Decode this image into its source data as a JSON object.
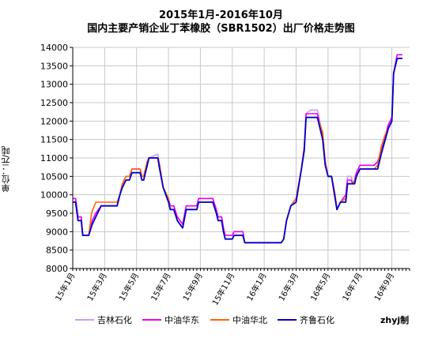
{
  "title_line1": "2015年1月-2016年10月",
  "title_line2": "国内主要产销企业丁苯橡胶（SBR1502）出厂价格走势图",
  "watermark": "zhyj制",
  "chart_data": {
    "type": "line",
    "ylabel": "单位：元/吨",
    "ylim": [
      8000,
      14000
    ],
    "ytick_step": 500,
    "xlim": [
      0,
      95
    ],
    "x_tick_labels": [
      {
        "x": 0,
        "label": "15年1月"
      },
      {
        "x": 9,
        "label": "15年3月"
      },
      {
        "x": 18,
        "label": "15年5月"
      },
      {
        "x": 27,
        "label": "15年7月"
      },
      {
        "x": 36,
        "label": "15年9月"
      },
      {
        "x": 45,
        "label": "15年11月"
      },
      {
        "x": 54,
        "label": "16年1月"
      },
      {
        "x": 63,
        "label": "16年3月"
      },
      {
        "x": 72,
        "label": "16年5月"
      },
      {
        "x": 81,
        "label": "16年7月"
      },
      {
        "x": 90,
        "label": "16年9月"
      }
    ],
    "grid": true,
    "legend_position": "bottom",
    "series": [
      {
        "name": "吉林石化",
        "color": "#c7a0f0",
        "values": [
          [
            0,
            9900
          ],
          [
            0.8,
            9900
          ],
          [
            1.5,
            9400
          ],
          [
            2.4,
            9400
          ],
          [
            2.8,
            8900
          ],
          [
            4.5,
            8900
          ],
          [
            5.5,
            9300
          ],
          [
            6.5,
            9500
          ],
          [
            8,
            9700
          ],
          [
            12.5,
            9700
          ],
          [
            13.3,
            10000
          ],
          [
            14,
            10300
          ],
          [
            15,
            10500
          ],
          [
            16,
            10500
          ],
          [
            16.7,
            10700
          ],
          [
            19,
            10700
          ],
          [
            19.5,
            10500
          ],
          [
            20,
            10500
          ],
          [
            21,
            10900
          ],
          [
            21.5,
            11000
          ],
          [
            24,
            11100
          ],
          [
            24.5,
            10800
          ],
          [
            25.5,
            10200
          ],
          [
            27,
            9900
          ],
          [
            27.5,
            9700
          ],
          [
            28.5,
            9700
          ],
          [
            29.5,
            9400
          ],
          [
            31,
            9200
          ],
          [
            32,
            9700
          ],
          [
            35,
            9700
          ],
          [
            35.5,
            9900
          ],
          [
            39.5,
            9900
          ],
          [
            40.5,
            9600
          ],
          [
            41,
            9400
          ],
          [
            42,
            9400
          ],
          [
            42.5,
            9100
          ],
          [
            43,
            8900
          ],
          [
            45,
            8900
          ],
          [
            45.5,
            9000
          ],
          [
            48,
            9000
          ],
          [
            48.5,
            8700
          ],
          [
            58.8,
            8700
          ],
          [
            59.5,
            8800
          ],
          [
            60.3,
            9300
          ],
          [
            61.5,
            9700
          ],
          [
            63,
            9900
          ],
          [
            64.5,
            10700
          ],
          [
            65.3,
            11300
          ],
          [
            65.8,
            12200
          ],
          [
            67,
            12300
          ],
          [
            69,
            12300
          ],
          [
            70.5,
            11600
          ],
          [
            71.2,
            10900
          ],
          [
            72,
            10500
          ],
          [
            73,
            10500
          ],
          [
            74,
            10000
          ],
          [
            74.5,
            9600
          ],
          [
            75.5,
            9800
          ],
          [
            77,
            10000
          ],
          [
            77.5,
            10500
          ],
          [
            78.5,
            10500
          ],
          [
            79,
            10300
          ],
          [
            79.5,
            10400
          ],
          [
            80,
            10600
          ],
          [
            81,
            10800
          ],
          [
            85,
            10800
          ],
          [
            86,
            10900
          ],
          [
            87,
            11200
          ],
          [
            89,
            11900
          ],
          [
            90,
            12100
          ],
          [
            90.5,
            13300
          ],
          [
            91.5,
            13800
          ],
          [
            93,
            13800
          ]
        ]
      },
      {
        "name": "中油华东",
        "color": "#ee00ee",
        "values": [
          [
            0,
            9900
          ],
          [
            0.8,
            9900
          ],
          [
            1.5,
            9400
          ],
          [
            2.4,
            9400
          ],
          [
            2.8,
            8900
          ],
          [
            4.5,
            8900
          ],
          [
            5.5,
            9300
          ],
          [
            6.5,
            9500
          ],
          [
            8,
            9700
          ],
          [
            12.5,
            9700
          ],
          [
            13.3,
            10000
          ],
          [
            14,
            10300
          ],
          [
            15,
            10500
          ],
          [
            16,
            10500
          ],
          [
            16.7,
            10700
          ],
          [
            19,
            10700
          ],
          [
            19.5,
            10500
          ],
          [
            20,
            10500
          ],
          [
            21,
            10900
          ],
          [
            21.5,
            11000
          ],
          [
            24,
            11000
          ],
          [
            24.5,
            10800
          ],
          [
            25.5,
            10200
          ],
          [
            27,
            9900
          ],
          [
            27.5,
            9700
          ],
          [
            28.5,
            9700
          ],
          [
            29.5,
            9400
          ],
          [
            31,
            9200
          ],
          [
            32,
            9700
          ],
          [
            35,
            9700
          ],
          [
            35.5,
            9900
          ],
          [
            39.5,
            9900
          ],
          [
            40.5,
            9600
          ],
          [
            41,
            9400
          ],
          [
            42,
            9400
          ],
          [
            42.5,
            9100
          ],
          [
            43,
            8900
          ],
          [
            45,
            8900
          ],
          [
            45.5,
            9000
          ],
          [
            48,
            9000
          ],
          [
            48.5,
            8700
          ],
          [
            58.8,
            8700
          ],
          [
            59.5,
            8800
          ],
          [
            60.3,
            9300
          ],
          [
            61.5,
            9700
          ],
          [
            63,
            9900
          ],
          [
            64.5,
            10700
          ],
          [
            65.3,
            11300
          ],
          [
            65.8,
            12200
          ],
          [
            67,
            12200
          ],
          [
            69,
            12200
          ],
          [
            70.5,
            11600
          ],
          [
            71.2,
            10900
          ],
          [
            72,
            10500
          ],
          [
            73,
            10500
          ],
          [
            74,
            10000
          ],
          [
            74.5,
            9600
          ],
          [
            75.5,
            9800
          ],
          [
            77,
            10000
          ],
          [
            77.5,
            10400
          ],
          [
            78.5,
            10400
          ],
          [
            79,
            10300
          ],
          [
            79.5,
            10400
          ],
          [
            80,
            10600
          ],
          [
            81,
            10800
          ],
          [
            85,
            10800
          ],
          [
            86,
            10900
          ],
          [
            87,
            11200
          ],
          [
            89,
            11900
          ],
          [
            90,
            12100
          ],
          [
            90.5,
            13300
          ],
          [
            91.5,
            13800
          ],
          [
            93,
            13800
          ]
        ]
      },
      {
        "name": "中油华北",
        "color": "#ff6600",
        "values": [
          [
            0,
            9800
          ],
          [
            0.8,
            9800
          ],
          [
            1.5,
            9300
          ],
          [
            2.4,
            9300
          ],
          [
            2.8,
            8900
          ],
          [
            4.5,
            8900
          ],
          [
            5.3,
            9500
          ],
          [
            6.5,
            9800
          ],
          [
            12.5,
            9800
          ],
          [
            13.3,
            10000
          ],
          [
            14,
            10300
          ],
          [
            15,
            10500
          ],
          [
            16,
            10500
          ],
          [
            16.7,
            10700
          ],
          [
            19,
            10700
          ],
          [
            19.5,
            10500
          ],
          [
            20,
            10500
          ],
          [
            21,
            10900
          ],
          [
            21.5,
            11000
          ],
          [
            24,
            11000
          ],
          [
            24.5,
            10800
          ],
          [
            25.5,
            10200
          ],
          [
            27,
            9900
          ],
          [
            27.5,
            9600
          ],
          [
            28.5,
            9600
          ],
          [
            29.5,
            9300
          ],
          [
            31,
            9100
          ],
          [
            32,
            9600
          ],
          [
            35,
            9600
          ],
          [
            35.5,
            9800
          ],
          [
            39.5,
            9800
          ],
          [
            40.5,
            9500
          ],
          [
            41,
            9300
          ],
          [
            42,
            9300
          ],
          [
            42.5,
            9000
          ],
          [
            43,
            8800
          ],
          [
            45,
            8800
          ],
          [
            45.5,
            8900
          ],
          [
            48,
            8900
          ],
          [
            48.5,
            8700
          ],
          [
            58.8,
            8700
          ],
          [
            59.5,
            8800
          ],
          [
            60.3,
            9300
          ],
          [
            61.5,
            9700
          ],
          [
            63,
            9900
          ],
          [
            64.5,
            10700
          ],
          [
            65.3,
            11300
          ],
          [
            65.8,
            12100
          ],
          [
            67,
            12100
          ],
          [
            69,
            12100
          ],
          [
            70.5,
            11700
          ],
          [
            71.2,
            10900
          ],
          [
            72,
            10500
          ],
          [
            73,
            10500
          ],
          [
            74,
            10000
          ],
          [
            74.5,
            9600
          ],
          [
            75.5,
            9800
          ],
          [
            77,
            9900
          ],
          [
            77.5,
            10300
          ],
          [
            78.5,
            10300
          ],
          [
            79,
            10300
          ],
          [
            79.5,
            10400
          ],
          [
            80,
            10500
          ],
          [
            81,
            10700
          ],
          [
            85,
            10700
          ],
          [
            86,
            10800
          ],
          [
            87,
            11300
          ],
          [
            88,
            11600
          ],
          [
            89,
            11800
          ],
          [
            90,
            12000
          ],
          [
            90.5,
            13300
          ],
          [
            91.5,
            13700
          ],
          [
            93,
            13700
          ]
        ]
      },
      {
        "name": "齐鲁石化",
        "color": "#0000cc",
        "values": [
          [
            0,
            9800
          ],
          [
            0.8,
            9800
          ],
          [
            1.5,
            9300
          ],
          [
            2.4,
            9300
          ],
          [
            2.8,
            8900
          ],
          [
            4.5,
            8900
          ],
          [
            5.5,
            9200
          ],
          [
            6.5,
            9400
          ],
          [
            8,
            9700
          ],
          [
            12.5,
            9700
          ],
          [
            13.3,
            10000
          ],
          [
            14,
            10200
          ],
          [
            15,
            10400
          ],
          [
            16,
            10400
          ],
          [
            16.7,
            10600
          ],
          [
            19,
            10600
          ],
          [
            19.5,
            10400
          ],
          [
            20,
            10400
          ],
          [
            21,
            10800
          ],
          [
            21.5,
            11000
          ],
          [
            24,
            11000
          ],
          [
            24.5,
            10700
          ],
          [
            25.5,
            10200
          ],
          [
            27,
            9800
          ],
          [
            27.5,
            9600
          ],
          [
            28.5,
            9600
          ],
          [
            29.5,
            9300
          ],
          [
            31,
            9100
          ],
          [
            32,
            9600
          ],
          [
            35,
            9600
          ],
          [
            35.5,
            9800
          ],
          [
            39.5,
            9800
          ],
          [
            40.5,
            9500
          ],
          [
            41,
            9300
          ],
          [
            42,
            9300
          ],
          [
            42.5,
            9000
          ],
          [
            43,
            8800
          ],
          [
            45,
            8800
          ],
          [
            45.5,
            8900
          ],
          [
            48,
            8900
          ],
          [
            48.5,
            8700
          ],
          [
            58.8,
            8700
          ],
          [
            59.5,
            8800
          ],
          [
            60.3,
            9300
          ],
          [
            61.5,
            9700
          ],
          [
            63,
            9800
          ],
          [
            64.5,
            10700
          ],
          [
            65.3,
            11200
          ],
          [
            65.8,
            12100
          ],
          [
            67,
            12100
          ],
          [
            69,
            12100
          ],
          [
            70.5,
            11500
          ],
          [
            71.2,
            10800
          ],
          [
            72,
            10500
          ],
          [
            73,
            10500
          ],
          [
            74,
            9900
          ],
          [
            74.5,
            9600
          ],
          [
            75.5,
            9800
          ],
          [
            77,
            9800
          ],
          [
            77.5,
            10300
          ],
          [
            78.5,
            10300
          ],
          [
            79,
            10300
          ],
          [
            79.5,
            10300
          ],
          [
            80,
            10500
          ],
          [
            81,
            10700
          ],
          [
            85,
            10700
          ],
          [
            86,
            10700
          ],
          [
            87,
            11100
          ],
          [
            89,
            11800
          ],
          [
            90,
            12000
          ],
          [
            90.5,
            13300
          ],
          [
            91.5,
            13700
          ],
          [
            93,
            13700
          ]
        ]
      }
    ]
  }
}
